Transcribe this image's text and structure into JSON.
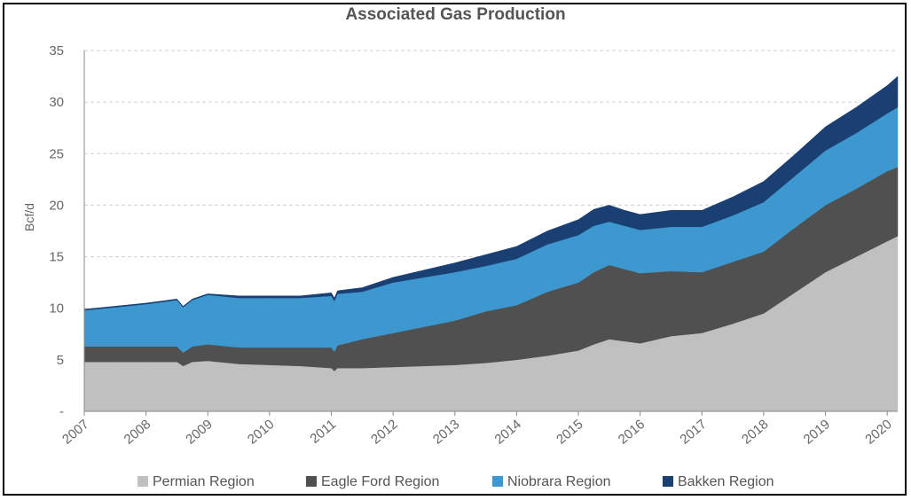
{
  "chart_data": {
    "type": "area",
    "stacked": true,
    "title": "Associated Gas Production",
    "xlabel": "",
    "ylabel": "Bcf/d",
    "ylim": [
      0,
      35
    ],
    "yticks": [
      0,
      5,
      10,
      15,
      20,
      25,
      30,
      35
    ],
    "ytick_labels": [
      "-",
      "5",
      "10",
      "15",
      "20",
      "25",
      "30",
      "35"
    ],
    "xlim": [
      2007.0,
      2020.17
    ],
    "xtick_labels": [
      "2007",
      "2008",
      "2009",
      "2010",
      "2011",
      "2012",
      "2013",
      "2014",
      "2015",
      "2016",
      "2017",
      "2018",
      "2019",
      "2020"
    ],
    "grid": "horizontal dashed",
    "legend_position": "bottom",
    "x": [
      2007.0,
      2007.5,
      2008.0,
      2008.5,
      2008.6,
      2008.75,
      2009.0,
      2009.5,
      2010.0,
      2010.5,
      2011.0,
      2011.05,
      2011.1,
      2011.5,
      2012.0,
      2012.5,
      2013.0,
      2013.5,
      2014.0,
      2014.5,
      2015.0,
      2015.25,
      2015.5,
      2015.75,
      2016.0,
      2016.5,
      2017.0,
      2017.5,
      2018.0,
      2018.5,
      2019.0,
      2019.5,
      2020.0,
      2020.17
    ],
    "series": [
      {
        "name": "Permian Region",
        "color": "#c0c0c0",
        "values": [
          4.8,
          4.8,
          4.8,
          4.8,
          4.4,
          4.8,
          4.9,
          4.6,
          4.5,
          4.4,
          4.2,
          3.9,
          4.2,
          4.2,
          4.3,
          4.4,
          4.5,
          4.7,
          5.0,
          5.4,
          5.9,
          6.5,
          7.0,
          6.8,
          6.6,
          7.3,
          7.6,
          8.5,
          9.5,
          11.5,
          13.5,
          15.0,
          16.5,
          17.0
        ]
      },
      {
        "name": "Eagle Ford Region",
        "color": "#505050",
        "values": [
          1.5,
          1.5,
          1.5,
          1.5,
          1.3,
          1.5,
          1.6,
          1.6,
          1.7,
          1.8,
          2.0,
          1.9,
          2.2,
          2.8,
          3.3,
          3.8,
          4.3,
          5.0,
          5.3,
          6.2,
          6.6,
          7.0,
          7.2,
          7.0,
          6.8,
          6.3,
          5.9,
          6.0,
          6.0,
          6.3,
          6.5,
          6.6,
          6.8,
          6.7
        ]
      },
      {
        "name": "Niobrara Region",
        "color": "#3d98cf",
        "values": [
          3.5,
          3.8,
          4.1,
          4.5,
          4.4,
          4.5,
          4.8,
          4.8,
          4.8,
          4.8,
          5.0,
          4.9,
          5.0,
          4.6,
          4.9,
          4.8,
          4.7,
          4.4,
          4.5,
          4.6,
          4.6,
          4.5,
          4.2,
          4.2,
          4.2,
          4.3,
          4.4,
          4.5,
          4.8,
          5.0,
          5.3,
          5.4,
          5.6,
          5.8
        ]
      },
      {
        "name": "Bakken Region",
        "color": "#1a3f73",
        "values": [
          0.1,
          0.1,
          0.1,
          0.1,
          0.1,
          0.1,
          0.1,
          0.2,
          0.2,
          0.2,
          0.3,
          0.3,
          0.3,
          0.4,
          0.5,
          0.7,
          0.9,
          1.1,
          1.2,
          1.3,
          1.5,
          1.6,
          1.6,
          1.5,
          1.5,
          1.6,
          1.6,
          1.8,
          2.0,
          2.1,
          2.3,
          2.5,
          2.7,
          3.0
        ]
      }
    ]
  }
}
